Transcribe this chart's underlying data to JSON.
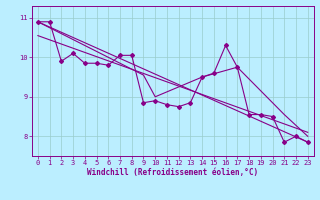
{
  "xlabel": "Windchill (Refroidissement éolien,°C)",
  "background_color": "#bbeeff",
  "plot_bg_color": "#bbeeff",
  "line_color": "#880088",
  "grid_color": "#99cccc",
  "xlim": [
    -0.5,
    23.5
  ],
  "ylim": [
    7.5,
    11.3
  ],
  "yticks": [
    8,
    9,
    10,
    11
  ],
  "xticks": [
    0,
    1,
    2,
    3,
    4,
    5,
    6,
    7,
    8,
    9,
    10,
    11,
    12,
    13,
    14,
    15,
    16,
    17,
    18,
    19,
    20,
    21,
    22,
    23
  ],
  "series1_x": [
    0,
    1,
    2,
    3,
    4,
    5,
    6,
    7,
    8,
    9,
    10,
    11,
    12,
    13,
    14,
    15,
    16,
    17,
    18,
    19,
    20,
    21,
    22,
    23
  ],
  "series1_y": [
    10.9,
    10.9,
    9.9,
    10.1,
    9.85,
    9.85,
    9.8,
    10.05,
    10.05,
    8.85,
    8.9,
    8.8,
    8.75,
    8.85,
    9.5,
    9.6,
    10.3,
    9.75,
    8.55,
    8.55,
    8.5,
    7.85,
    8.0,
    7.85
  ],
  "trend1_x": [
    0,
    23
  ],
  "trend1_y": [
    10.9,
    7.85
  ],
  "trend2_x": [
    0,
    9,
    10,
    14,
    17,
    21,
    23
  ],
  "trend2_y": [
    10.9,
    9.55,
    9.0,
    9.5,
    9.75,
    8.55,
    8.0
  ],
  "trend3_x": [
    0,
    23
  ],
  "trend3_y": [
    10.55,
    8.1
  ],
  "figsize": [
    3.2,
    2.0
  ],
  "dpi": 100
}
